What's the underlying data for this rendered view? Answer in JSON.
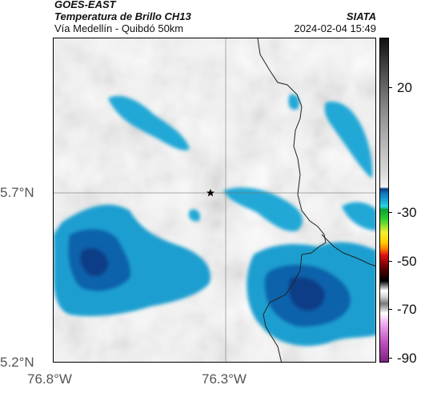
{
  "header": {
    "satellite": "GOES-EAST",
    "product": "Temperatura de Brillo CH13",
    "region": "Vía Medellín - Quibdó 50km",
    "org": "SIATA",
    "datetime": "2024-02-04 15:49"
  },
  "axes": {
    "y_ticks": [
      "5.7°N",
      "5.2°N"
    ],
    "x_ticks": [
      "76.8°W",
      "76.3°W"
    ]
  },
  "colorbar": {
    "ticks": [
      "20",
      "-30",
      "-50",
      "-70",
      "-90"
    ]
  },
  "map": {
    "marker_icon": "star-marker-icon",
    "colors": {
      "cold_cloud": "#1aa3d1",
      "very_cold_cloud": "#0a4f9a",
      "warm_gray": "#9a9a9a"
    }
  }
}
